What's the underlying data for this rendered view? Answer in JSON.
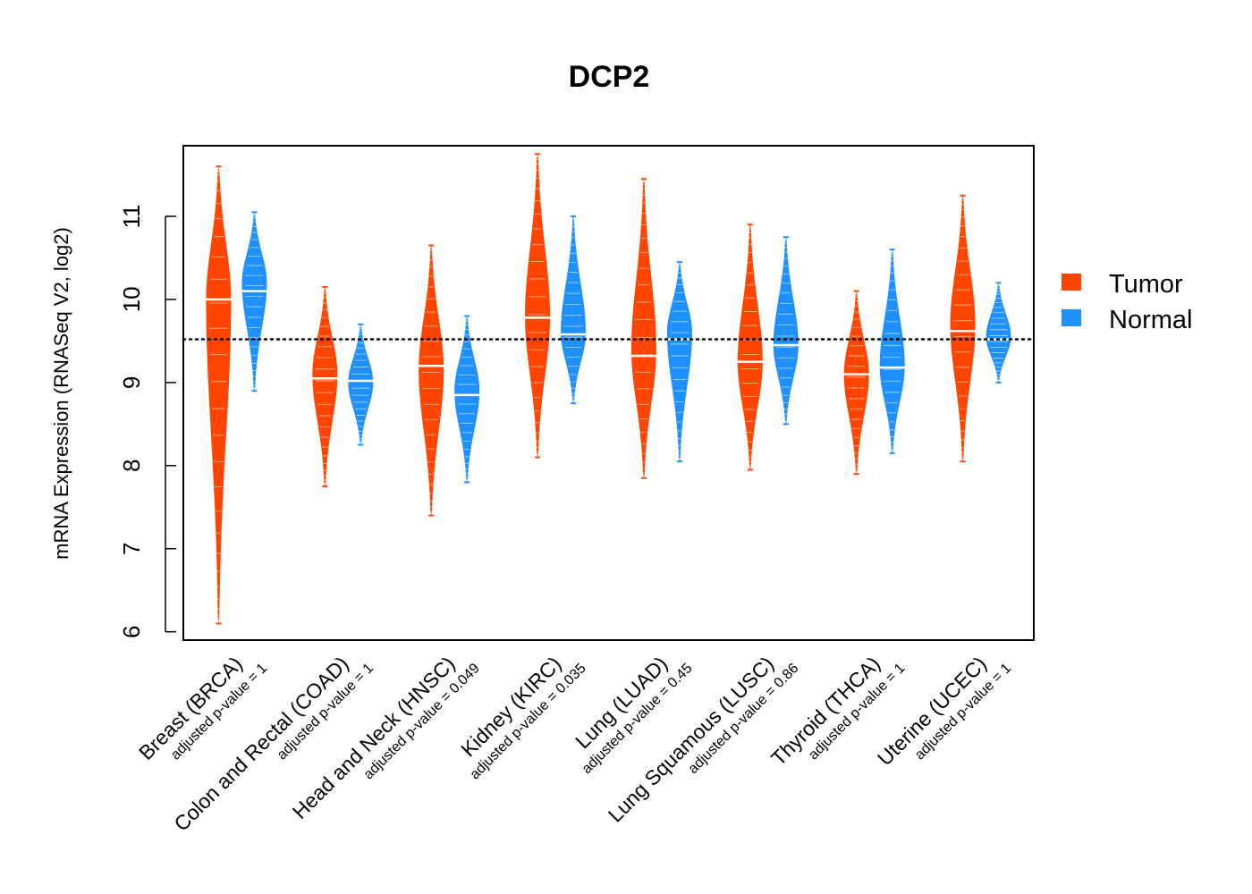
{
  "chart_data": {
    "type": "beanplot",
    "title": "DCP2",
    "xlabel": "",
    "ylabel": "mRNA Expression (RNASeq V2, log2)",
    "ylim": [
      5.9,
      11.85
    ],
    "yticks": [
      6,
      7,
      8,
      9,
      10,
      11
    ],
    "reference_line": 9.52,
    "legend": {
      "position": "right",
      "entries": [
        {
          "name": "Tumor",
          "color": "#FF4500"
        },
        {
          "name": "Normal",
          "color": "#1E90FF"
        }
      ]
    },
    "categories": [
      {
        "name": "Breast (BRCA)",
        "pvalue_label": "adjusted p-value = 1"
      },
      {
        "name": "Colon and Rectal (COAD)",
        "pvalue_label": "adjusted p-value = 1"
      },
      {
        "name": "Head and Neck (HNSC)",
        "pvalue_label": "adjusted p-value = 0.049"
      },
      {
        "name": "Kidney (KIRC)",
        "pvalue_label": "adjusted p-value = 0.035"
      },
      {
        "name": "Lung (LUAD)",
        "pvalue_label": "adjusted p-value = 0.45"
      },
      {
        "name": "Lung Squamous (LUSC)",
        "pvalue_label": "adjusted p-value = 0.86"
      },
      {
        "name": "Thyroid (THCA)",
        "pvalue_label": "adjusted p-value = 1"
      },
      {
        "name": "Uterine (UCEC)",
        "pvalue_label": "adjusted p-value = 1"
      }
    ],
    "series": [
      {
        "name": "Tumor",
        "color": "#FF4500",
        "min": [
          6.1,
          7.75,
          7.4,
          8.1,
          7.85,
          7.95,
          7.9,
          8.05
        ],
        "max": [
          11.6,
          10.15,
          10.65,
          11.75,
          11.45,
          10.9,
          10.1,
          11.25
        ],
        "mode": [
          10.0,
          9.1,
          9.15,
          9.8,
          9.4,
          9.25,
          9.1,
          9.7
        ],
        "median": [
          10.0,
          9.05,
          9.2,
          9.78,
          9.32,
          9.25,
          9.1,
          9.62
        ]
      },
      {
        "name": "Normal",
        "color": "#1E90FF",
        "min": [
          8.9,
          8.25,
          7.8,
          8.75,
          8.05,
          8.5,
          8.15,
          9.0
        ],
        "max": [
          11.05,
          9.7,
          9.8,
          11.0,
          10.45,
          10.75,
          10.6,
          10.2
        ],
        "mode": [
          10.2,
          9.0,
          8.9,
          9.6,
          9.6,
          9.45,
          9.2,
          9.55
        ],
        "median": [
          10.1,
          9.02,
          8.85,
          9.58,
          9.52,
          9.45,
          9.18,
          9.52
        ]
      }
    ]
  }
}
